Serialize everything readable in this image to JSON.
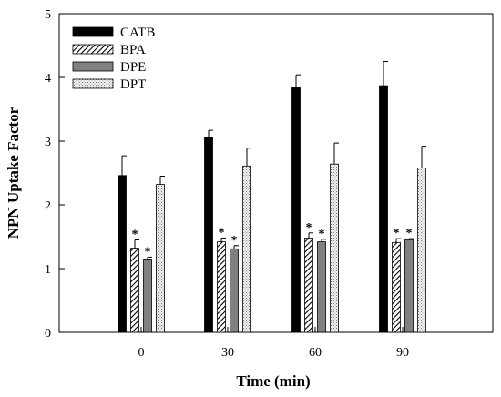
{
  "chart_data": {
    "type": "bar",
    "title": "",
    "xlabel": "Time (min)",
    "ylabel": "NPN Uptake Factor",
    "categories": [
      "0",
      "30",
      "60",
      "90"
    ],
    "ylim": [
      0,
      5
    ],
    "yticks": [
      "0",
      "1",
      "2",
      "3",
      "4",
      "5"
    ],
    "grid": false,
    "legend_position": "top-left",
    "series": [
      {
        "name": "CATB",
        "values": [
          2.46,
          3.06,
          3.85,
          3.87
        ],
        "errors": [
          0.31,
          0.11,
          0.19,
          0.38
        ],
        "significant": [
          false,
          false,
          false,
          false
        ],
        "fill": "solid",
        "color": "#000000"
      },
      {
        "name": "BPA",
        "values": [
          1.32,
          1.42,
          1.48,
          1.41
        ],
        "errors": [
          0.13,
          0.06,
          0.08,
          0.06
        ],
        "significant": [
          true,
          true,
          true,
          true
        ],
        "fill": "hatch",
        "color": "#000000"
      },
      {
        "name": "DPE",
        "values": [
          1.15,
          1.31,
          1.42,
          1.45
        ],
        "errors": [
          0.03,
          0.05,
          0.04,
          0.02
        ],
        "significant": [
          true,
          true,
          true,
          true
        ],
        "fill": "solid",
        "color": "#808080"
      },
      {
        "name": "DPT",
        "values": [
          2.32,
          2.61,
          2.64,
          2.58
        ],
        "errors": [
          0.13,
          0.28,
          0.33,
          0.34
        ],
        "significant": [
          false,
          false,
          false,
          false
        ],
        "fill": "dots",
        "color": "#d8d8d8"
      }
    ],
    "significance_marker": "*"
  }
}
